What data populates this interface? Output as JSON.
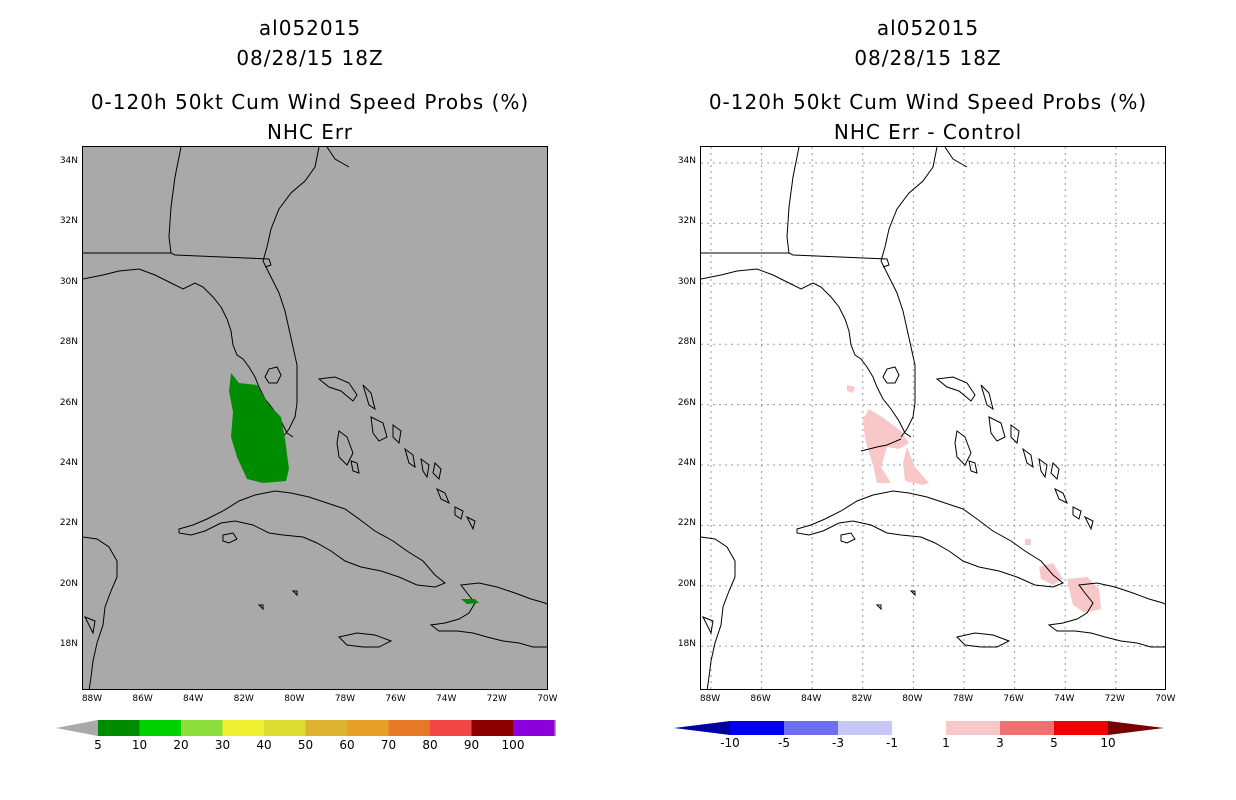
{
  "left_panel": {
    "storm_id": "al052015",
    "datetime": "08/28/15 18Z",
    "title": "0-120h 50kt Cum Wind Speed Probs (%)",
    "subtitle": "NHC Err",
    "background_color": "#a9a9a9",
    "field_color": "#008c00"
  },
  "right_panel": {
    "storm_id": "al052015",
    "datetime": "08/28/15 18Z",
    "title": "0-120h 50kt Cum Wind Speed Probs (%)",
    "subtitle": "NHC Err - Control",
    "background_color": "#ffffff",
    "field_color": "#f8c8c8"
  },
  "map_axes": {
    "lat_labels": [
      "34N",
      "32N",
      "30N",
      "28N",
      "26N",
      "24N",
      "22N",
      "20N",
      "18N"
    ],
    "lon_labels": [
      "88W",
      "86W",
      "84W",
      "82W",
      "80W",
      "78W",
      "76W",
      "74W",
      "72W",
      "70W"
    ]
  },
  "left_colorbar": {
    "labels": [
      "5",
      "10",
      "20",
      "30",
      "40",
      "50",
      "60",
      "70",
      "80",
      "90",
      "100"
    ],
    "colors": [
      "#008c00",
      "#00d200",
      "#8cdc3c",
      "#f0f032",
      "#dcdc32",
      "#dcb432",
      "#e6a028",
      "#e67828",
      "#f04646",
      "#8c0000",
      "#8c00dc"
    ],
    "extend_color": "#a9a9a9"
  },
  "right_colorbar": {
    "labels": [
      "-10",
      "-5",
      "-3",
      "-1",
      "1",
      "3",
      "5",
      "10"
    ],
    "colors": [
      "#0000a0",
      "#0000f0",
      "#6e6ef0",
      "#c8c8f8",
      "#ffffff",
      "#f8c8c8",
      "#f07070",
      "#f00000",
      "#780000"
    ]
  }
}
